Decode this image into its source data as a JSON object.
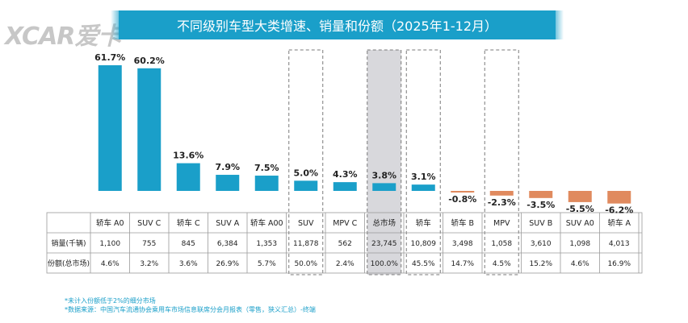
{
  "brand": {
    "logo": "XCAR爱卡"
  },
  "chart_data": {
    "type": "bar",
    "title": "不同级别车型大类增速、销量和份额（2025年1-12月）",
    "categories": [
      "轿车 A0",
      "SUV C",
      "轿车 C",
      "SUV A",
      "轿车 A00",
      "SUV",
      "MPV C",
      "总市场",
      "轿车",
      "轿车 B",
      "MPV",
      "SUV B",
      "SUV A0",
      "轿车 A"
    ],
    "series": [
      {
        "values": [
          61.7,
          60.2,
          13.6,
          7.9,
          7.5,
          5.0,
          4.3,
          3.8,
          3.1,
          -0.8,
          -2.3,
          -3.5,
          -5.5,
          -6.2
        ]
      }
    ],
    "data_labels": [
      "61.7%",
      "60.2%",
      "13.6%",
      "7.9%",
      "7.5%",
      "5.0%",
      "4.3%",
      "3.8%",
      "3.1%",
      "-0.8%",
      "-2.3%",
      "-3.5%",
      "-5.5%",
      "-6.2%"
    ],
    "highlight_categories": [
      "SUV",
      "总市场",
      "轿车",
      "MPV"
    ],
    "table": {
      "rows": [
        {
          "label": "销量(千辆)",
          "values": [
            "1,100",
            "755",
            "845",
            "6,384",
            "1,353",
            "11,878",
            "562",
            "23,745",
            "10,809",
            "3,498",
            "1,058",
            "3,610",
            "1,098",
            "4,013"
          ]
        },
        {
          "label": "份额(总市场)",
          "values": [
            "4.6%",
            "3.2%",
            "3.6%",
            "26.9%",
            "5.7%",
            "50.0%",
            "2.4%",
            "100.0%",
            "45.5%",
            "14.7%",
            "4.5%",
            "15.2%",
            "4.6%",
            "16.9%"
          ]
        }
      ]
    },
    "colors": {
      "positive": "#1a9fc9",
      "negative": "#e08a5e",
      "title_bg": "#1a9fc9",
      "total_bg": "#d8d8dc"
    }
  },
  "notes": [
    "*未计入份额低于2%的细分市场",
    "*数据来源：中国汽车流通协会乘用车市场信息联席分会月报表（零售，狭义汇总）-终端"
  ]
}
